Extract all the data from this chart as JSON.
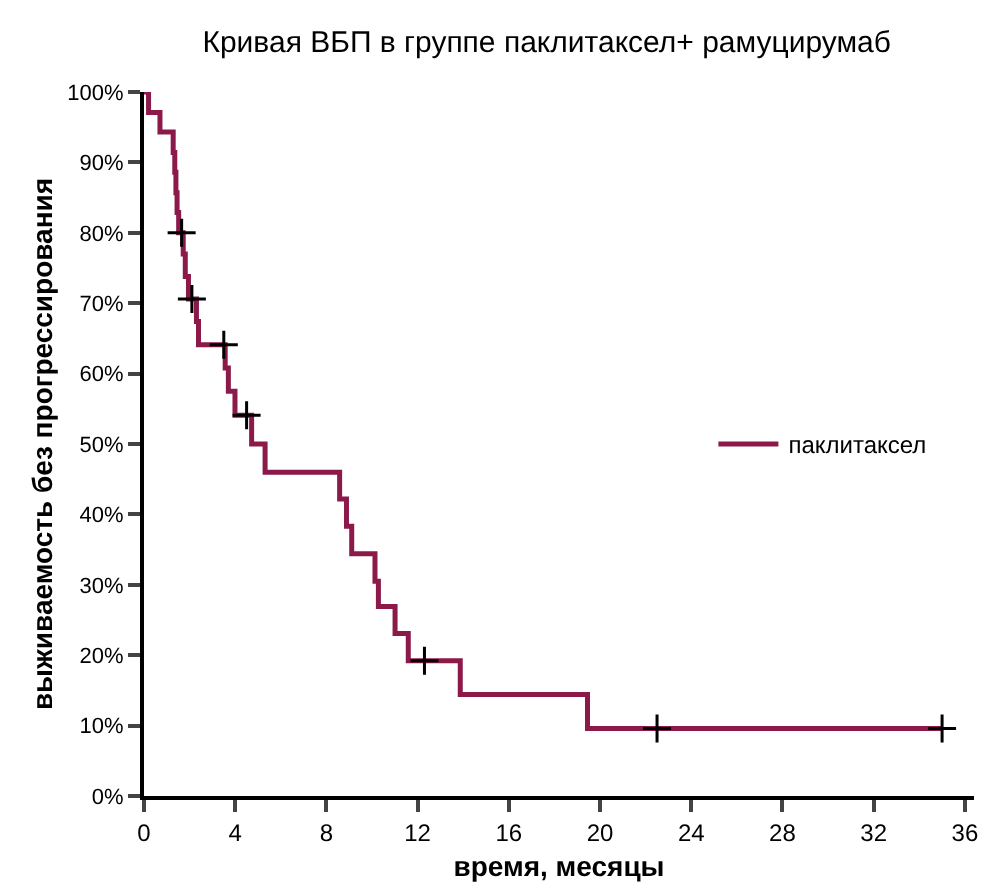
{
  "chart_data": {
    "type": "step",
    "title": "Кривая ВБП в группе паклитаксел+ рамуцирумаб",
    "xlabel": "время, месяцы",
    "ylabel": "выживаемость без прогрессирования",
    "series": [
      {
        "name": "паклитаксел",
        "color": "#8b1a4a",
        "type": "step",
        "x": [
          0,
          0.2,
          0.7,
          1.28,
          1.35,
          1.4,
          1.45,
          1.52,
          1.72,
          1.81,
          1.95,
          2.3,
          2.39,
          3.56,
          3.7,
          3.99,
          4.72,
          5.31,
          8.58,
          8.88,
          9.11,
          10.13,
          10.28,
          11.01,
          11.59,
          13.87,
          19.45,
          35.0
        ],
        "values": [
          100,
          97.1,
          94.3,
          91.4,
          88.6,
          85.7,
          82.9,
          80.0,
          77.0,
          73.8,
          70.6,
          67.4,
          64.1,
          60.8,
          57.5,
          54.1,
          50.0,
          46.0,
          42.2,
          38.3,
          34.4,
          30.5,
          26.9,
          23.1,
          19.2,
          14.4,
          9.6,
          9.6
        ]
      },
      {
        "color": "#000000",
        "type": "scatter",
        "marker": "cross",
        "x": [
          1.65,
          2.1,
          3.5,
          4.5,
          12.3,
          22.5,
          35.0
        ],
        "values": [
          80.0,
          70.6,
          64.1,
          54.1,
          19.2,
          9.6,
          9.6
        ]
      }
    ],
    "xlim": [
      0,
      36.4
    ],
    "xticks": [
      0,
      4,
      8,
      12,
      16,
      20,
      24,
      28,
      32,
      36
    ],
    "ylim": [
      0,
      100
    ],
    "yticks": [
      {
        "value": 0,
        "label": "0%"
      },
      {
        "value": 10,
        "label": "10%"
      },
      {
        "value": 20,
        "label": "20%"
      },
      {
        "value": 30,
        "label": "30%"
      },
      {
        "value": 40,
        "label": "40%"
      },
      {
        "value": 50,
        "label": "50%"
      },
      {
        "value": 60,
        "label": "60%"
      },
      {
        "value": 70,
        "label": "70%"
      },
      {
        "value": 80,
        "label": "80%"
      },
      {
        "value": 90,
        "label": "90%"
      },
      {
        "value": 100,
        "label": "100%"
      }
    ],
    "legend": "right"
  }
}
